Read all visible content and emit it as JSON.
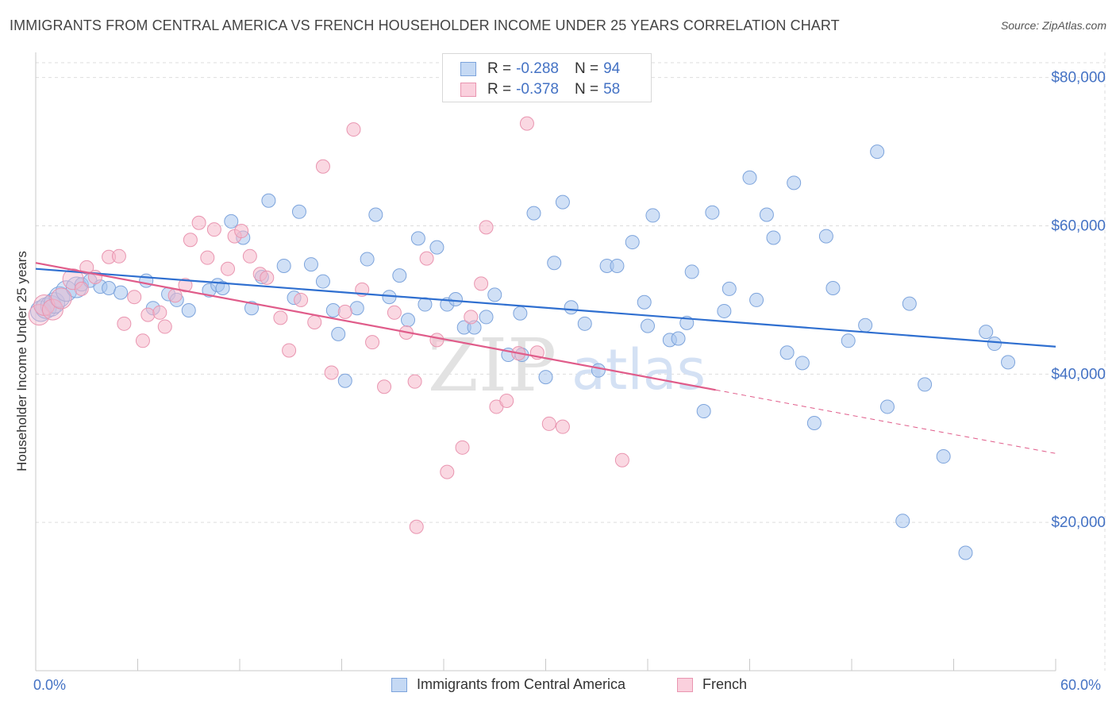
{
  "header": {
    "title": "IMMIGRANTS FROM CENTRAL AMERICA VS FRENCH HOUSEHOLDER INCOME UNDER 25 YEARS CORRELATION CHART",
    "source": "Source: ZipAtlas.com"
  },
  "watermark": {
    "zip": "ZIP",
    "atlas": "atlas"
  },
  "legend": {
    "r_label": "R =",
    "n_label": "N =",
    "rows": [
      {
        "r": "-0.288",
        "n": "94"
      },
      {
        "r": "-0.378",
        "n": "58"
      }
    ]
  },
  "chart_data": {
    "type": "scatter",
    "title": "IMMIGRANTS FROM CENTRAL AMERICA VS FRENCH HOUSEHOLDER INCOME UNDER 25 YEARS CORRELATION CHART",
    "xlabel": "",
    "ylabel": "Householder Income Under 25 years",
    "xlim": [
      0,
      60
    ],
    "ylim": [
      0,
      82000
    ],
    "x_tick_labels": [
      "0.0%",
      "60.0%"
    ],
    "y_ticks": [
      20000,
      40000,
      60000,
      80000
    ],
    "y_tick_labels": [
      "$20,000",
      "$40,000",
      "$60,000",
      "$80,000"
    ],
    "grid": true,
    "series": [
      {
        "name": "Immigrants from Central America",
        "color": "#a9c6ee",
        "stroke": "#7da4dc",
        "trend_color": "#2f6fd0",
        "trend": {
          "x0": 0.0,
          "y0": 54200,
          "x1": 60.0,
          "y1": 43700,
          "dashed_from": null
        },
        "points": [
          [
            0.3,
            48500
          ],
          [
            0.6,
            48900
          ],
          [
            0.9,
            49200
          ],
          [
            1.1,
            49600
          ],
          [
            1.4,
            50400
          ],
          [
            1.8,
            51200
          ],
          [
            2.4,
            51700
          ],
          [
            2.7,
            52100
          ],
          [
            3.2,
            52600
          ],
          [
            3.8,
            51800
          ],
          [
            4.3,
            51600
          ],
          [
            5.0,
            51000
          ],
          [
            6.5,
            52600
          ],
          [
            6.9,
            48900
          ],
          [
            7.8,
            50800
          ],
          [
            8.3,
            50000
          ],
          [
            9.0,
            48600
          ],
          [
            10.2,
            51300
          ],
          [
            10.7,
            52000
          ],
          [
            11.5,
            60600
          ],
          [
            11.0,
            51600
          ],
          [
            12.2,
            58400
          ],
          [
            12.7,
            48900
          ],
          [
            13.3,
            53100
          ],
          [
            13.7,
            63400
          ],
          [
            14.6,
            54600
          ],
          [
            15.2,
            50300
          ],
          [
            15.5,
            61900
          ],
          [
            16.2,
            54800
          ],
          [
            16.9,
            52500
          ],
          [
            17.5,
            48600
          ],
          [
            17.8,
            45400
          ],
          [
            18.2,
            39100
          ],
          [
            18.9,
            48900
          ],
          [
            19.5,
            55500
          ],
          [
            20.0,
            61500
          ],
          [
            20.8,
            50400
          ],
          [
            21.4,
            53300
          ],
          [
            21.9,
            47300
          ],
          [
            22.5,
            58300
          ],
          [
            22.9,
            49400
          ],
          [
            23.6,
            57100
          ],
          [
            24.2,
            49400
          ],
          [
            24.7,
            50100
          ],
          [
            25.2,
            46300
          ],
          [
            25.8,
            46300
          ],
          [
            26.5,
            47700
          ],
          [
            27.0,
            50700
          ],
          [
            27.8,
            42600
          ],
          [
            28.5,
            48200
          ],
          [
            28.6,
            42600
          ],
          [
            29.3,
            61700
          ],
          [
            30.0,
            39600
          ],
          [
            30.5,
            55000
          ],
          [
            31.0,
            63200
          ],
          [
            31.5,
            49000
          ],
          [
            32.3,
            46800
          ],
          [
            33.1,
            40500
          ],
          [
            33.6,
            54600
          ],
          [
            34.2,
            54600
          ],
          [
            35.1,
            57800
          ],
          [
            35.8,
            49700
          ],
          [
            36.0,
            46500
          ],
          [
            36.3,
            61400
          ],
          [
            37.3,
            44600
          ],
          [
            37.8,
            44800
          ],
          [
            38.3,
            46900
          ],
          [
            38.6,
            53800
          ],
          [
            39.3,
            35000
          ],
          [
            39.8,
            61800
          ],
          [
            40.5,
            48500
          ],
          [
            40.8,
            51500
          ],
          [
            42.0,
            66500
          ],
          [
            42.4,
            50000
          ],
          [
            43.0,
            61500
          ],
          [
            43.4,
            58400
          ],
          [
            44.2,
            42900
          ],
          [
            44.6,
            65800
          ],
          [
            45.1,
            41500
          ],
          [
            45.8,
            33400
          ],
          [
            46.5,
            58600
          ],
          [
            46.9,
            51600
          ],
          [
            47.8,
            44500
          ],
          [
            48.8,
            46600
          ],
          [
            49.5,
            70000
          ],
          [
            50.1,
            35600
          ],
          [
            51.0,
            20200
          ],
          [
            51.4,
            49500
          ],
          [
            52.3,
            38600
          ],
          [
            53.4,
            28900
          ],
          [
            54.7,
            15900
          ],
          [
            55.9,
            45700
          ],
          [
            56.4,
            44100
          ],
          [
            57.2,
            41600
          ]
        ]
      },
      {
        "name": "French",
        "color": "#f5b8cb",
        "stroke": "#e995b0",
        "trend_color": "#e05c8a",
        "trend": {
          "x0": 0.0,
          "y0": 55000,
          "x1": 60.0,
          "y1": 29300,
          "dashed_from": 40.0
        },
        "points": [
          [
            0.2,
            48000
          ],
          [
            0.5,
            49300
          ],
          [
            1.0,
            48700
          ],
          [
            1.5,
            50200
          ],
          [
            2.2,
            52800
          ],
          [
            2.7,
            51500
          ],
          [
            3.0,
            54400
          ],
          [
            3.5,
            53100
          ],
          [
            4.3,
            55800
          ],
          [
            4.9,
            55900
          ],
          [
            5.2,
            46800
          ],
          [
            5.8,
            50400
          ],
          [
            6.3,
            44500
          ],
          [
            6.6,
            48000
          ],
          [
            7.3,
            48300
          ],
          [
            7.6,
            46400
          ],
          [
            8.2,
            50600
          ],
          [
            8.8,
            52000
          ],
          [
            9.1,
            58100
          ],
          [
            9.6,
            60400
          ],
          [
            10.1,
            55700
          ],
          [
            10.5,
            59500
          ],
          [
            11.3,
            54200
          ],
          [
            11.7,
            58600
          ],
          [
            12.1,
            59300
          ],
          [
            12.6,
            55900
          ],
          [
            13.2,
            53500
          ],
          [
            13.6,
            53000
          ],
          [
            14.4,
            47600
          ],
          [
            14.9,
            43200
          ],
          [
            15.6,
            50000
          ],
          [
            16.4,
            47000
          ],
          [
            16.9,
            68000
          ],
          [
            17.4,
            40200
          ],
          [
            18.2,
            48400
          ],
          [
            18.7,
            73000
          ],
          [
            19.2,
            51400
          ],
          [
            19.8,
            44300
          ],
          [
            20.5,
            38300
          ],
          [
            21.1,
            48300
          ],
          [
            21.8,
            45600
          ],
          [
            22.3,
            39000
          ],
          [
            22.4,
            19400
          ],
          [
            23.0,
            55600
          ],
          [
            23.6,
            44600
          ],
          [
            24.2,
            26800
          ],
          [
            25.1,
            30100
          ],
          [
            25.6,
            47700
          ],
          [
            26.2,
            52200
          ],
          [
            26.5,
            59800
          ],
          [
            27.1,
            35600
          ],
          [
            27.7,
            36400
          ],
          [
            28.4,
            42800
          ],
          [
            28.9,
            73800
          ],
          [
            29.5,
            42900
          ],
          [
            30.2,
            33300
          ],
          [
            31.0,
            32900
          ],
          [
            34.5,
            28400
          ]
        ]
      }
    ]
  }
}
